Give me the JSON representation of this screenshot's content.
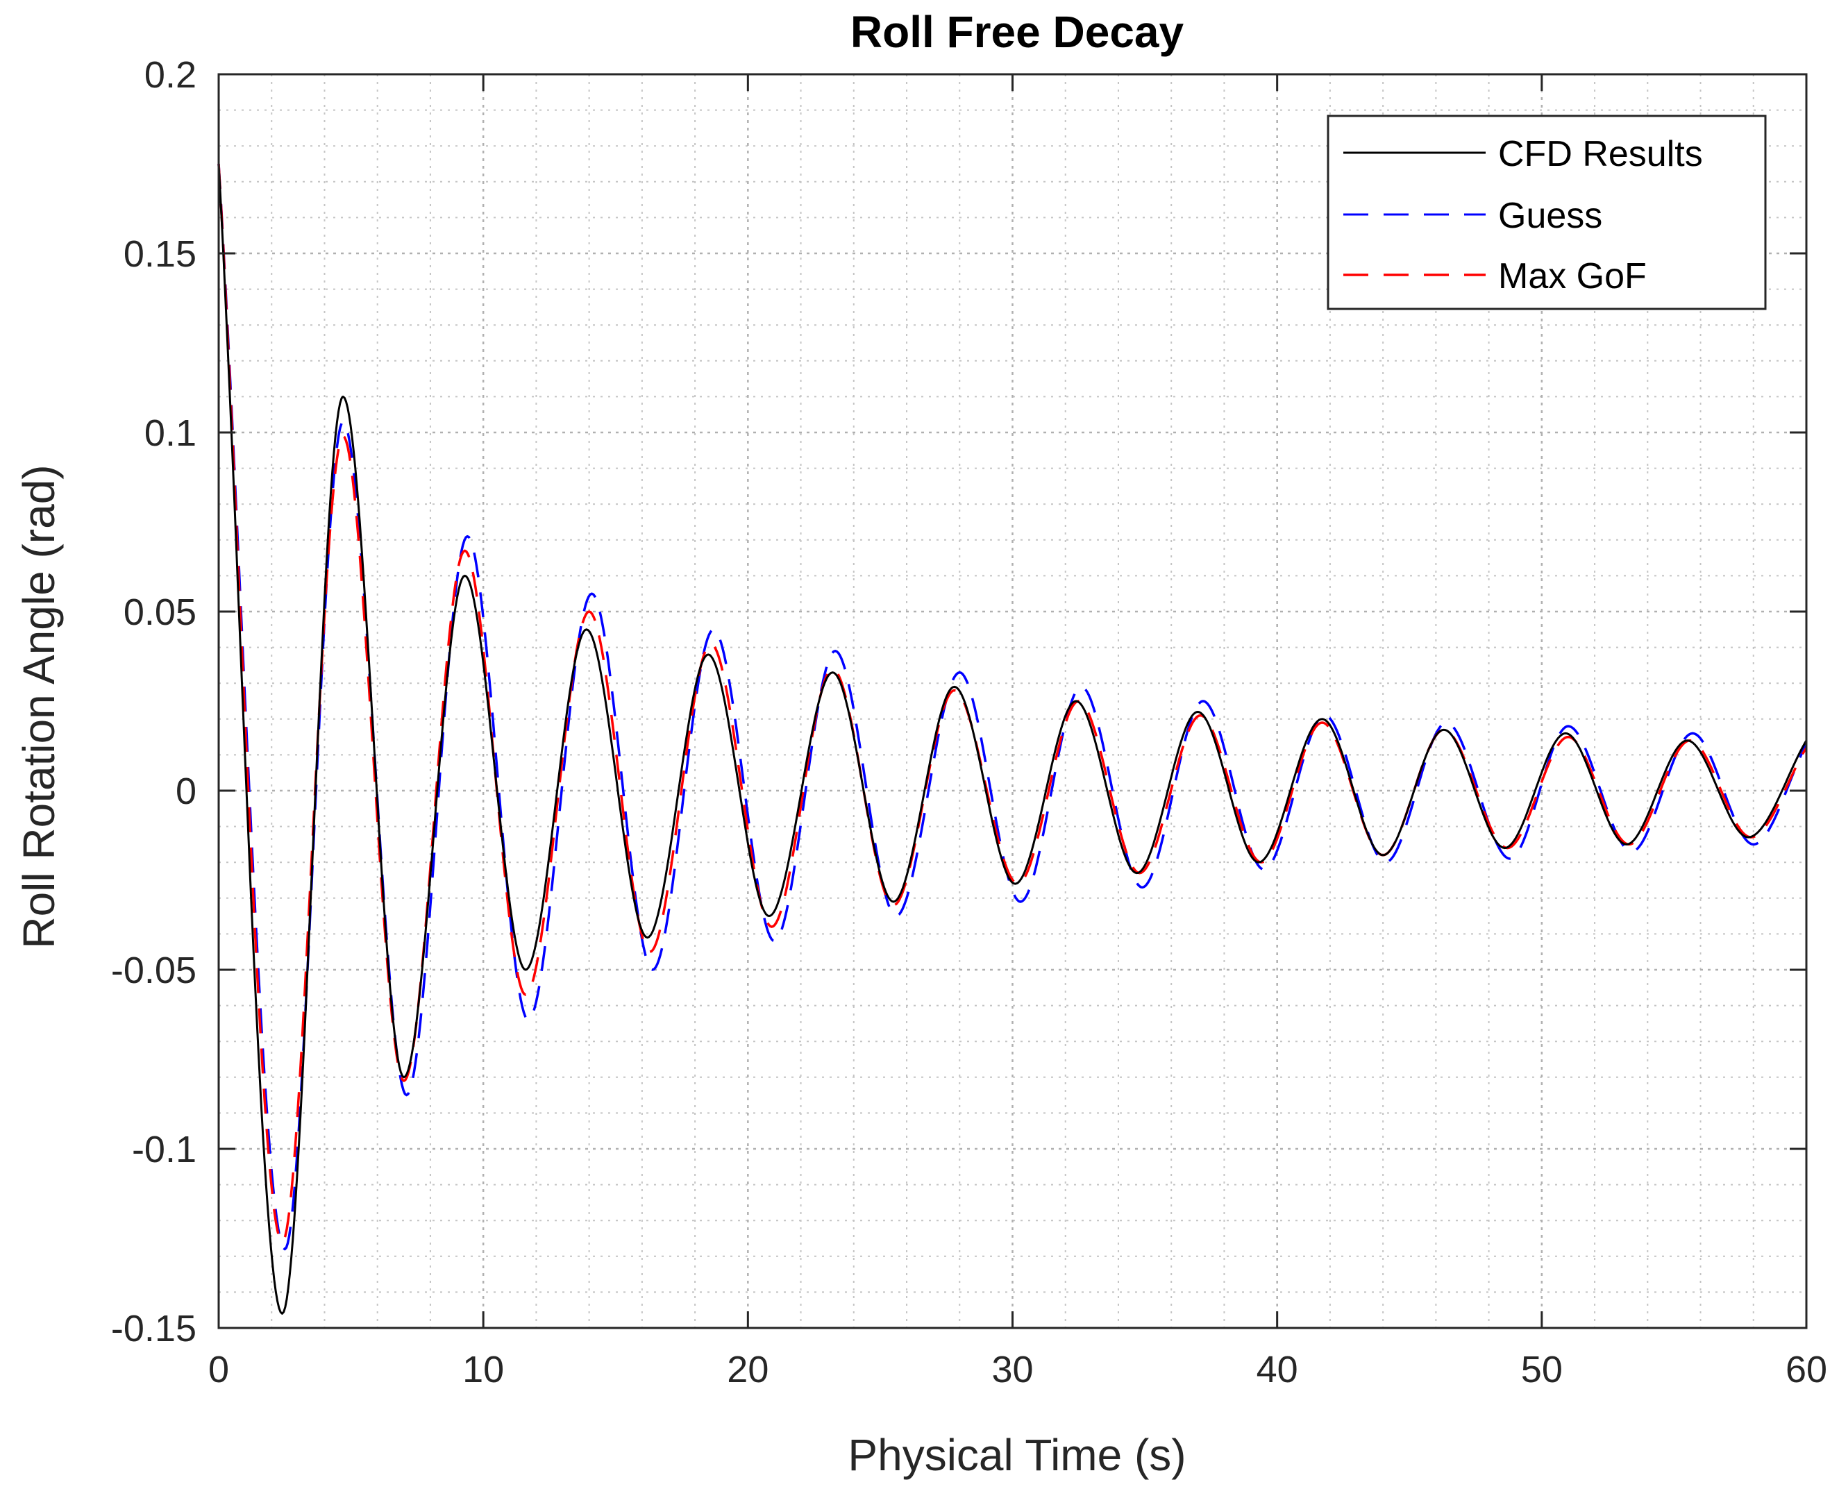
{
  "chart_data": {
    "type": "line",
    "title": "Roll Free Decay",
    "xlabel": "Physical Time (s)",
    "ylabel": "Roll Rotation Angle (rad)",
    "xlim": [
      0,
      60
    ],
    "ylim": [
      -0.15,
      0.2
    ],
    "x_ticks": [
      0,
      10,
      20,
      30,
      40,
      50,
      60
    ],
    "x_tick_labels": [
      "0",
      "10",
      "20",
      "30",
      "40",
      "50",
      "60"
    ],
    "y_ticks": [
      -0.15,
      -0.1,
      -0.05,
      0,
      0.05,
      0.1,
      0.15,
      0.2
    ],
    "y_tick_labels": [
      "-0.15",
      "-0.1",
      "-0.05",
      "0",
      "0.05",
      "0.1",
      "0.15",
      "0.2"
    ],
    "grid": true,
    "minor_grid": true,
    "legend_position": "top-right",
    "series": [
      {
        "name": "CFD Results",
        "color": "#000000",
        "dash": "solid",
        "points": [
          [
            0,
            0.175
          ],
          [
            2.4,
            -0.146
          ],
          [
            4.7,
            0.11
          ],
          [
            7.0,
            -0.08
          ],
          [
            9.3,
            0.06
          ],
          [
            11.6,
            -0.05
          ],
          [
            13.9,
            0.045
          ],
          [
            16.2,
            -0.041
          ],
          [
            18.5,
            0.038
          ],
          [
            20.8,
            -0.035
          ],
          [
            23.2,
            0.033
          ],
          [
            25.5,
            -0.031
          ],
          [
            27.8,
            0.029
          ],
          [
            30.1,
            -0.026
          ],
          [
            32.4,
            0.025
          ],
          [
            34.7,
            -0.023
          ],
          [
            37.0,
            0.022
          ],
          [
            39.3,
            -0.02
          ],
          [
            41.7,
            0.02
          ],
          [
            44.0,
            -0.018
          ],
          [
            46.3,
            0.017
          ],
          [
            48.6,
            -0.016
          ],
          [
            50.9,
            0.016
          ],
          [
            53.2,
            -0.015
          ],
          [
            55.5,
            0.014
          ],
          [
            57.8,
            -0.013
          ],
          [
            60,
            0.014
          ]
        ]
      },
      {
        "name": "Guess",
        "color": "#0000ff",
        "dash": "dashed",
        "points": [
          [
            0,
            0.175
          ],
          [
            2.5,
            -0.128
          ],
          [
            4.7,
            0.103
          ],
          [
            7.1,
            -0.085
          ],
          [
            9.4,
            0.071
          ],
          [
            11.7,
            -0.064
          ],
          [
            14.1,
            0.055
          ],
          [
            16.4,
            -0.05
          ],
          [
            18.7,
            0.045
          ],
          [
            21.0,
            -0.042
          ],
          [
            23.3,
            0.039
          ],
          [
            25.6,
            -0.035
          ],
          [
            28.0,
            0.033
          ],
          [
            30.3,
            -0.031
          ],
          [
            32.6,
            0.029
          ],
          [
            34.9,
            -0.027
          ],
          [
            37.2,
            0.025
          ],
          [
            39.5,
            -0.022
          ],
          [
            41.8,
            0.021
          ],
          [
            44.1,
            -0.02
          ],
          [
            46.4,
            0.019
          ],
          [
            48.8,
            -0.019
          ],
          [
            51.0,
            0.018
          ],
          [
            53.4,
            -0.017
          ],
          [
            55.7,
            0.016
          ],
          [
            58.0,
            -0.015
          ],
          [
            60,
            0.013
          ]
        ]
      },
      {
        "name": "Max GoF",
        "color": "#ff0000",
        "dash": "dashed",
        "points": [
          [
            0,
            0.175
          ],
          [
            2.4,
            -0.126
          ],
          [
            4.7,
            0.099
          ],
          [
            7.0,
            -0.081
          ],
          [
            9.3,
            0.067
          ],
          [
            11.6,
            -0.057
          ],
          [
            14.0,
            0.05
          ],
          [
            16.3,
            -0.045
          ],
          [
            18.6,
            0.041
          ],
          [
            20.9,
            -0.038
          ],
          [
            23.2,
            0.034
          ],
          [
            25.5,
            -0.032
          ],
          [
            27.8,
            0.028
          ],
          [
            30.2,
            -0.026
          ],
          [
            32.5,
            0.025
          ],
          [
            34.8,
            -0.023
          ],
          [
            37.1,
            0.021
          ],
          [
            39.4,
            -0.02
          ],
          [
            41.7,
            0.019
          ],
          [
            44.0,
            -0.018
          ],
          [
            46.3,
            0.017
          ],
          [
            48.7,
            -0.016
          ],
          [
            51.0,
            0.015
          ],
          [
            53.3,
            -0.015
          ],
          [
            55.6,
            0.014
          ],
          [
            57.9,
            -0.013
          ],
          [
            60,
            0.012
          ]
        ]
      }
    ]
  }
}
